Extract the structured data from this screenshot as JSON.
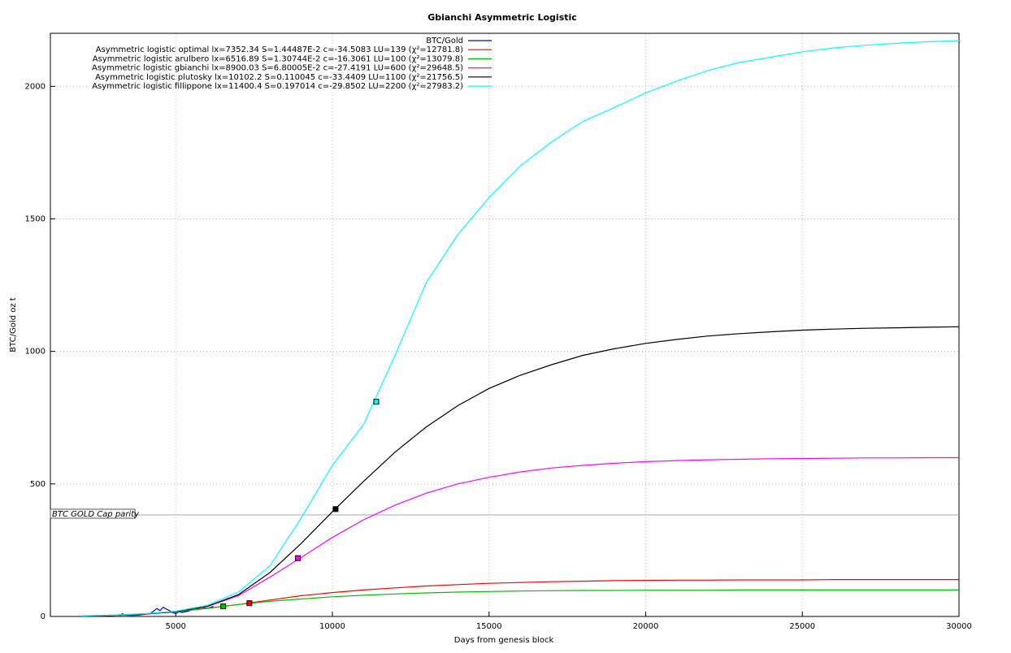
{
  "chart_data": {
    "type": "line",
    "title": "Gbianchi Asymmetric Logistic",
    "x_label": "Days from genesis block",
    "y_label": "BTC/Gold oz t",
    "x": [
      2000,
      3000,
      4000,
      5000,
      6000,
      7000,
      8000,
      9000,
      10000,
      11000,
      12000,
      13000,
      14000,
      15000,
      16000,
      17000,
      18000,
      19000,
      20000,
      21000,
      22000,
      23000,
      24000,
      25000,
      26000,
      27000,
      28000,
      29000,
      30000
    ],
    "series": [
      {
        "name": "BTC/Gold",
        "color": "#0000ff",
        "x": [
          3200,
          3300,
          3400,
          3600,
          3800,
          4000,
          4200,
          4400,
          4500,
          4600,
          4700,
          4800,
          4900,
          5000,
          5100,
          5200,
          5400,
          5600,
          5700,
          5800,
          6000,
          6200
        ],
        "values": [
          2,
          10,
          5,
          4,
          5,
          8,
          12,
          30,
          22,
          35,
          28,
          22,
          15,
          10,
          18,
          15,
          20,
          30,
          25,
          35,
          30,
          38
        ]
      },
      {
        "name": "Asymmetric logistic optimal lx=7352.34 S=1.44487E-2 c=-34.5083 LU=139 (χ²=12781.8)",
        "color": "#ff0000",
        "values": [
          2,
          5,
          10,
          18,
          30,
          45,
          62,
          78,
          90,
          100,
          108,
          115,
          120,
          125,
          128,
          131,
          133,
          135,
          136,
          137,
          137,
          138,
          138,
          138,
          139,
          139,
          139,
          139,
          139
        ],
        "marker": [
          7352.34,
          50
        ]
      },
      {
        "name": "Asymmetric logistic arulbero lx=6516.89 S=1.30744E-2 c=-16.3061 LU=100 (χ²=13079.8)",
        "color": "#00c000",
        "values": [
          2,
          5,
          10,
          18,
          31,
          45,
          57,
          66,
          74,
          80,
          85,
          89,
          92,
          94,
          96,
          97,
          98,
          98,
          99,
          99,
          99,
          100,
          100,
          100,
          100,
          100,
          100,
          100,
          100
        ],
        "marker": [
          6516.89,
          38
        ]
      },
      {
        "name": "Asymmetric logistic gbianchi lx=8900.03 S=6.80005E-2 c=-27.4191 LU=600 (χ²=29648.5)",
        "color": "#ff00ff",
        "values": [
          1,
          4,
          9,
          18,
          37,
          78,
          148,
          222,
          298,
          365,
          420,
          465,
          500,
          525,
          545,
          560,
          570,
          578,
          584,
          588,
          591,
          593,
          595,
          596,
          597,
          598,
          598,
          599,
          599
        ],
        "marker": [
          8900.03,
          220
        ]
      },
      {
        "name": "Asymmetric logistic plutosky lx=10102.2 S=0.110045 c=-33.4409 LU=1100 (χ²=21756.5)",
        "color": "#000000",
        "values": [
          1,
          4,
          9,
          18,
          38,
          82,
          165,
          275,
          395,
          510,
          620,
          715,
          795,
          860,
          910,
          950,
          985,
          1010,
          1030,
          1045,
          1058,
          1067,
          1074,
          1080,
          1084,
          1087,
          1089,
          1091,
          1093
        ],
        "marker": [
          10102.2,
          405
        ]
      },
      {
        "name": "Asymmetric logistic fillippone lx=11400.4 S=0.197014 c=-29.8502 LU=2200 (χ²=27983.2)",
        "color": "#00ffff",
        "values": [
          2,
          5,
          10,
          20,
          42,
          92,
          190,
          370,
          570,
          725,
          985,
          1260,
          1440,
          1580,
          1700,
          1790,
          1868,
          1920,
          1975,
          2020,
          2060,
          2090,
          2110,
          2130,
          2145,
          2155,
          2162,
          2168,
          2172
        ],
        "marker": [
          11400.4,
          810
        ]
      }
    ],
    "reference_line": {
      "label": "BTC GOLD Cap parity",
      "y": 383,
      "color": "#aaaaaa"
    },
    "xlim": [
      1000,
      30000
    ],
    "xticks": [
      5000,
      10000,
      15000,
      20000,
      25000,
      30000
    ],
    "ylim": [
      0,
      2200
    ],
    "yticks": [
      0,
      500,
      1000,
      1500,
      2000
    ],
    "grid": true,
    "legend": "top-left"
  }
}
